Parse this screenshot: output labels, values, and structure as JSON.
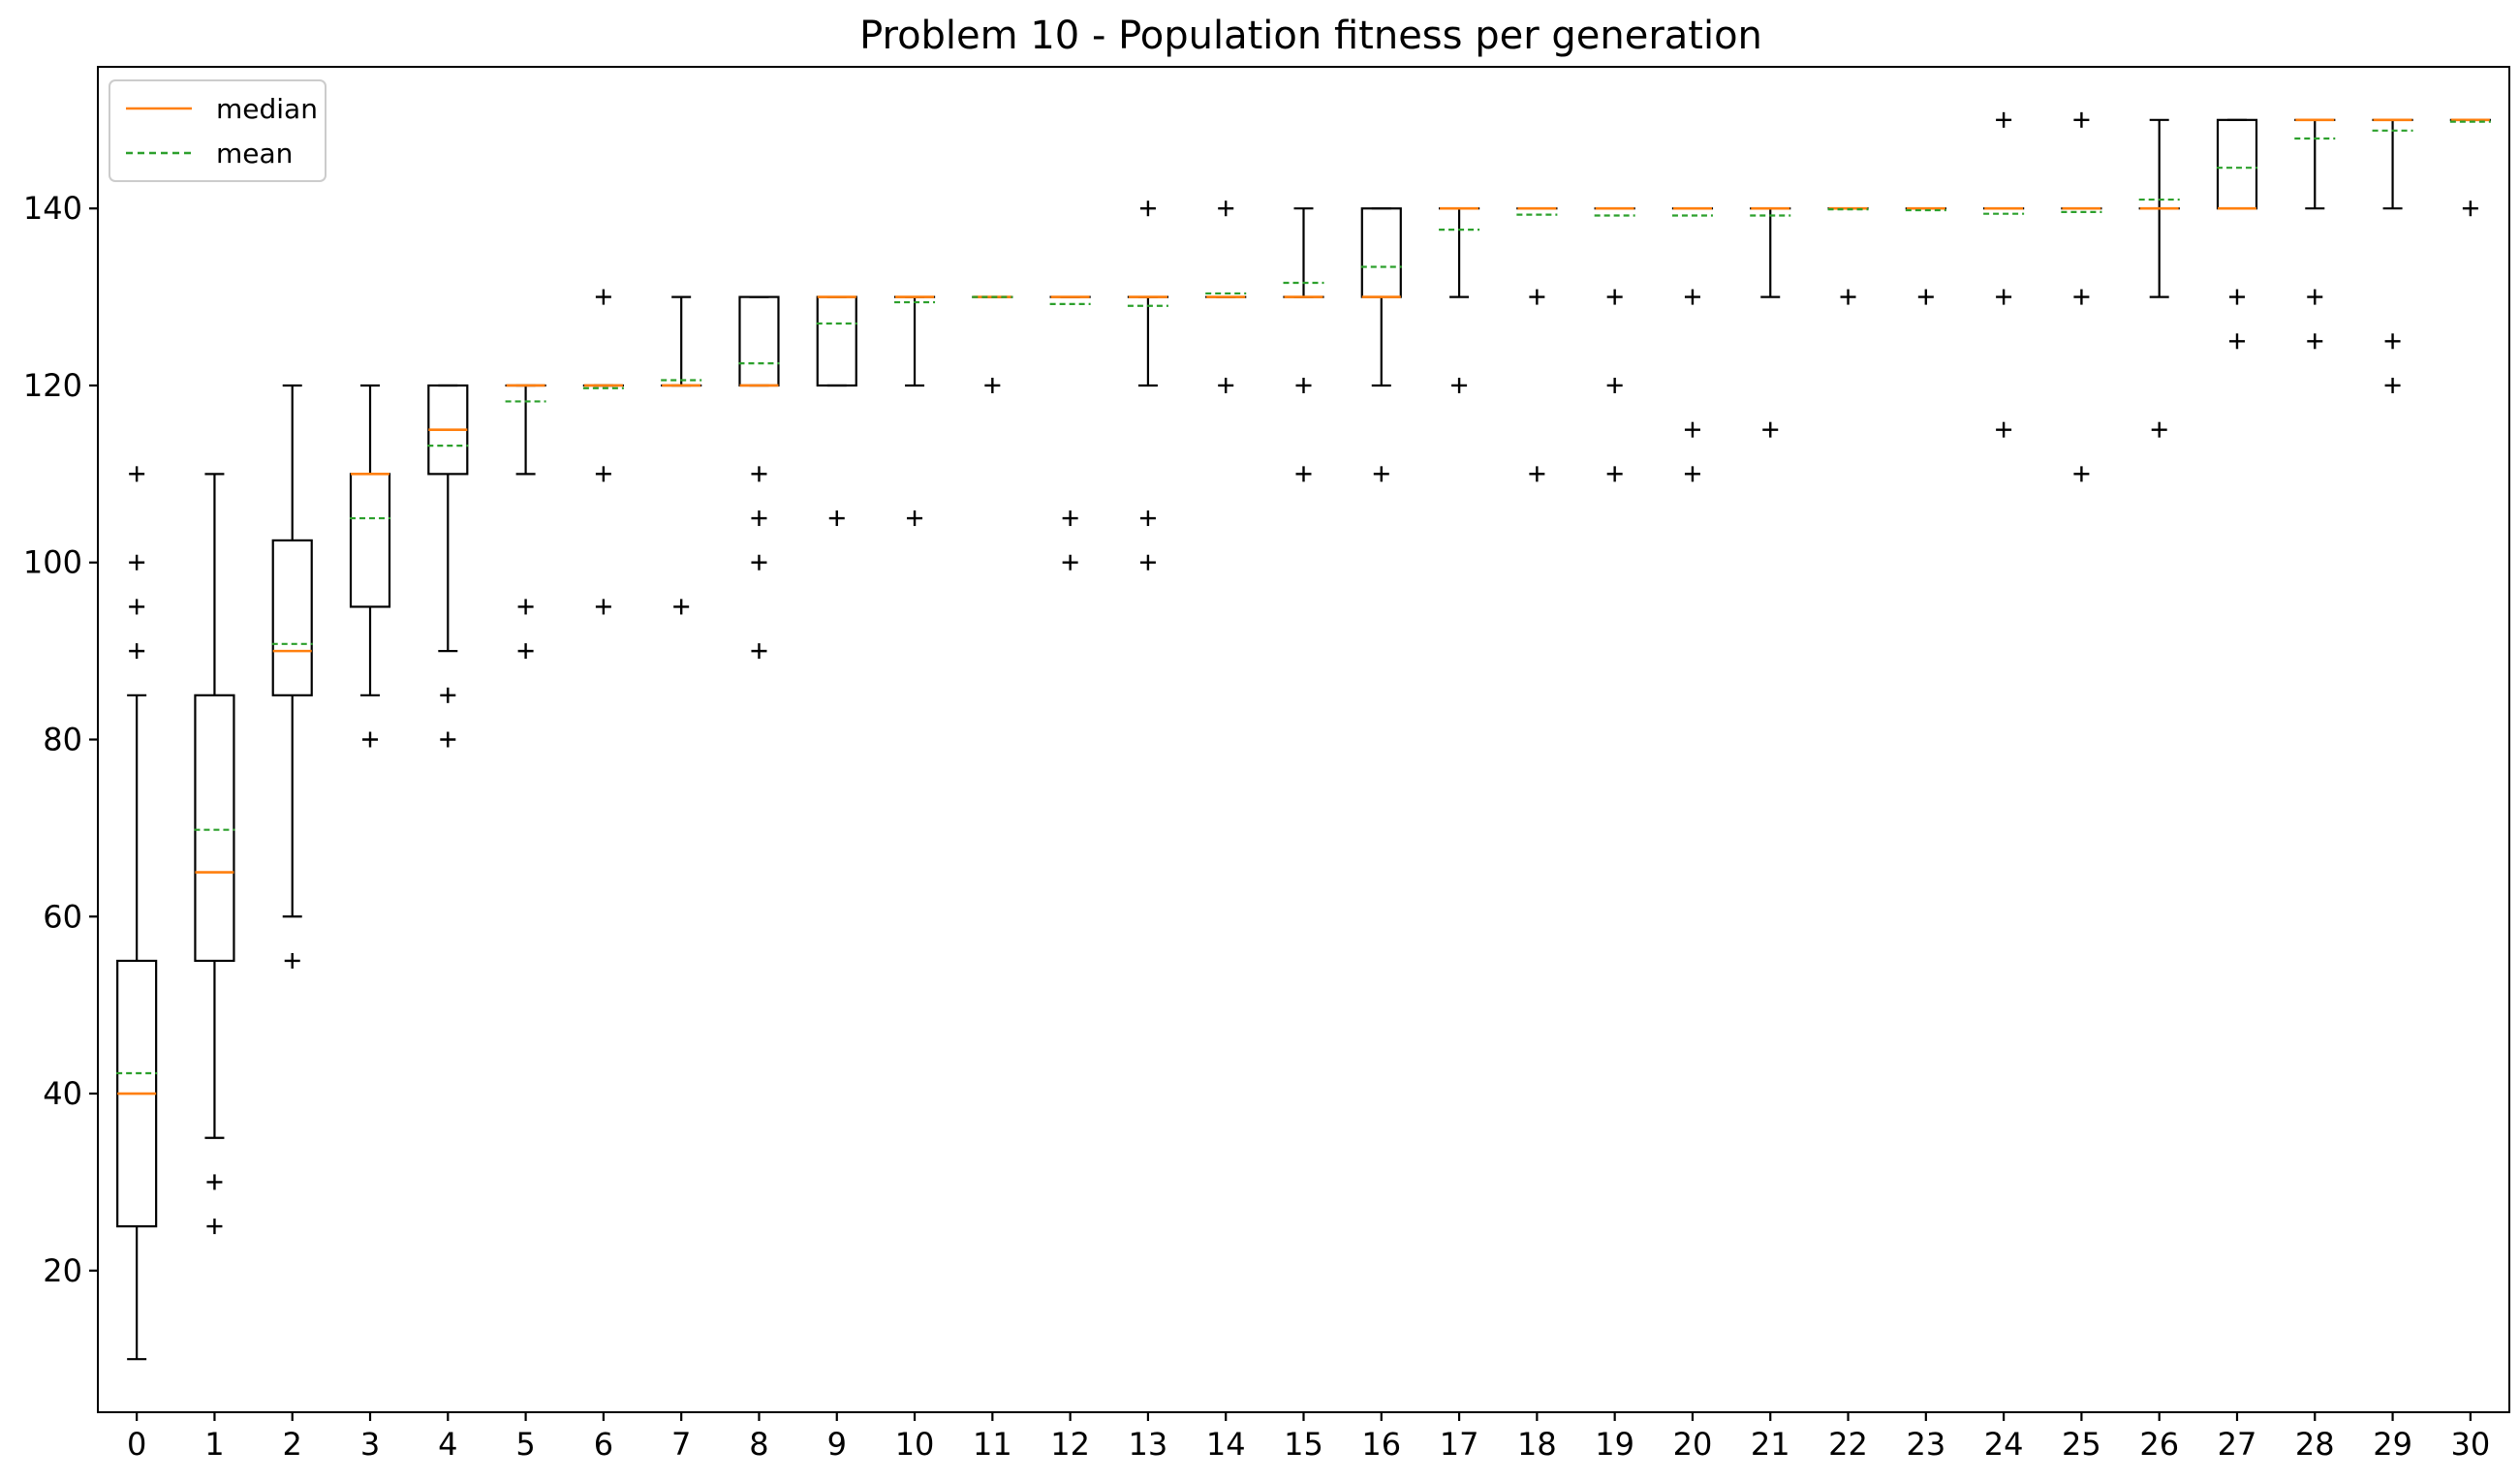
{
  "chart_data": {
    "type": "boxplot",
    "title": "Problem 10 - Population fitness per generation",
    "xlabel": "",
    "ylabel": "",
    "ylim": [
      4,
      156
    ],
    "xlim": [
      -0.5,
      30.5
    ],
    "yticks": [
      20,
      40,
      60,
      80,
      100,
      120,
      140
    ],
    "categories": [
      "0",
      "1",
      "2",
      "3",
      "4",
      "5",
      "6",
      "7",
      "8",
      "9",
      "10",
      "11",
      "12",
      "13",
      "14",
      "15",
      "16",
      "17",
      "18",
      "19",
      "20",
      "21",
      "22",
      "23",
      "24",
      "25",
      "26",
      "27",
      "28",
      "29",
      "30"
    ],
    "legend": {
      "position": "top-left",
      "entries": [
        {
          "label": "median",
          "color": "#ff7f0e",
          "style": "solid"
        },
        {
          "label": "mean",
          "color": "#2ca02c",
          "style": "dashed"
        }
      ]
    },
    "colors": {
      "box": "#000000",
      "median": "#ff7f0e",
      "mean": "#2ca02c"
    },
    "boxes": [
      {
        "x": 0,
        "whislo": 10,
        "q1": 25,
        "med": 40,
        "q3": 55,
        "whishi": 85,
        "mean": 42.3,
        "fliers": [
          90,
          95,
          100,
          110
        ]
      },
      {
        "x": 1,
        "whislo": 35,
        "q1": 55,
        "med": 65,
        "q3": 85,
        "whishi": 110,
        "mean": 69.8,
        "fliers": [
          25,
          30
        ]
      },
      {
        "x": 2,
        "whislo": 60,
        "q1": 85,
        "med": 90,
        "q3": 102.5,
        "whishi": 120,
        "mean": 90.8,
        "fliers": [
          55
        ]
      },
      {
        "x": 3,
        "whislo": 85,
        "q1": 95,
        "med": 110,
        "q3": 110,
        "whishi": 120,
        "mean": 105,
        "fliers": [
          80
        ]
      },
      {
        "x": 4,
        "whislo": 90,
        "q1": 110,
        "med": 115,
        "q3": 120,
        "whishi": 120,
        "mean": 113.2,
        "fliers": [
          80,
          85
        ]
      },
      {
        "x": 5,
        "whislo": 110,
        "q1": 120,
        "med": 120,
        "q3": 120,
        "whishi": 120,
        "mean": 118.2,
        "fliers": [
          90,
          95
        ]
      },
      {
        "x": 6,
        "whislo": 120,
        "q1": 120,
        "med": 120,
        "q3": 120,
        "whishi": 120,
        "mean": 119.7,
        "fliers": [
          95,
          110,
          130
        ]
      },
      {
        "x": 7,
        "whislo": 120,
        "q1": 120,
        "med": 120,
        "q3": 120,
        "whishi": 130,
        "mean": 120.6,
        "fliers": [
          95
        ]
      },
      {
        "x": 8,
        "whislo": 120,
        "q1": 120,
        "med": 120,
        "q3": 130,
        "whishi": 130,
        "mean": 122.5,
        "fliers": [
          90,
          100,
          105,
          110
        ]
      },
      {
        "x": 9,
        "whislo": 120,
        "q1": 120,
        "med": 130,
        "q3": 130,
        "whishi": 130,
        "mean": 127,
        "fliers": [
          105
        ]
      },
      {
        "x": 10,
        "whislo": 120,
        "q1": 130,
        "med": 130,
        "q3": 130,
        "whishi": 130,
        "mean": 129.4,
        "fliers": [
          105
        ]
      },
      {
        "x": 11,
        "whislo": 130,
        "q1": 130,
        "med": 130,
        "q3": 130,
        "whishi": 130,
        "mean": 130,
        "fliers": [
          120
        ]
      },
      {
        "x": 12,
        "whislo": 130,
        "q1": 130,
        "med": 130,
        "q3": 130,
        "whishi": 130,
        "mean": 129.2,
        "fliers": [
          100,
          105
        ]
      },
      {
        "x": 13,
        "whislo": 120,
        "q1": 130,
        "med": 130,
        "q3": 130,
        "whishi": 130,
        "mean": 129,
        "fliers": [
          100,
          105,
          140
        ]
      },
      {
        "x": 14,
        "whislo": 130,
        "q1": 130,
        "med": 130,
        "q3": 130,
        "whishi": 130,
        "mean": 130.4,
        "fliers": [
          120,
          140
        ]
      },
      {
        "x": 15,
        "whislo": 130,
        "q1": 130,
        "med": 130,
        "q3": 130,
        "whishi": 140,
        "mean": 131.6,
        "fliers": [
          110,
          120
        ]
      },
      {
        "x": 16,
        "whislo": 120,
        "q1": 130,
        "med": 130,
        "q3": 140,
        "whishi": 140,
        "mean": 133.4,
        "fliers": [
          110
        ]
      },
      {
        "x": 17,
        "whislo": 130,
        "q1": 140,
        "med": 140,
        "q3": 140,
        "whishi": 140,
        "mean": 137.6,
        "fliers": [
          120
        ]
      },
      {
        "x": 18,
        "whislo": 140,
        "q1": 140,
        "med": 140,
        "q3": 140,
        "whishi": 140,
        "mean": 139.3,
        "fliers": [
          110,
          130
        ]
      },
      {
        "x": 19,
        "whislo": 140,
        "q1": 140,
        "med": 140,
        "q3": 140,
        "whishi": 140,
        "mean": 139.2,
        "fliers": [
          110,
          120,
          130
        ]
      },
      {
        "x": 20,
        "whislo": 140,
        "q1": 140,
        "med": 140,
        "q3": 140,
        "whishi": 140,
        "mean": 139.2,
        "fliers": [
          110,
          115,
          130
        ]
      },
      {
        "x": 21,
        "whislo": 130,
        "q1": 140,
        "med": 140,
        "q3": 140,
        "whishi": 140,
        "mean": 139.2,
        "fliers": [
          115
        ]
      },
      {
        "x": 22,
        "whislo": 140,
        "q1": 140,
        "med": 140,
        "q3": 140,
        "whishi": 140,
        "mean": 139.9,
        "fliers": [
          130
        ]
      },
      {
        "x": 23,
        "whislo": 140,
        "q1": 140,
        "med": 140,
        "q3": 140,
        "whishi": 140,
        "mean": 139.8,
        "fliers": [
          130
        ]
      },
      {
        "x": 24,
        "whislo": 140,
        "q1": 140,
        "med": 140,
        "q3": 140,
        "whishi": 140,
        "mean": 139.4,
        "fliers": [
          115,
          130,
          150
        ]
      },
      {
        "x": 25,
        "whislo": 140,
        "q1": 140,
        "med": 140,
        "q3": 140,
        "whishi": 140,
        "mean": 139.6,
        "fliers": [
          110,
          130,
          150
        ]
      },
      {
        "x": 26,
        "whislo": 130,
        "q1": 140,
        "med": 140,
        "q3": 140,
        "whishi": 150,
        "mean": 141,
        "fliers": [
          115
        ]
      },
      {
        "x": 27,
        "whislo": 140,
        "q1": 140,
        "med": 140,
        "q3": 150,
        "whishi": 150,
        "mean": 144.6,
        "fliers": [
          125,
          130
        ]
      },
      {
        "x": 28,
        "whislo": 140,
        "q1": 150,
        "med": 150,
        "q3": 150,
        "whishi": 150,
        "mean": 147.9,
        "fliers": [
          125,
          130
        ]
      },
      {
        "x": 29,
        "whislo": 140,
        "q1": 150,
        "med": 150,
        "q3": 150,
        "whishi": 150,
        "mean": 148.8,
        "fliers": [
          120,
          125
        ]
      },
      {
        "x": 30,
        "whislo": 150,
        "q1": 150,
        "med": 150,
        "q3": 150,
        "whishi": 150,
        "mean": 149.8,
        "fliers": [
          140
        ]
      }
    ]
  }
}
